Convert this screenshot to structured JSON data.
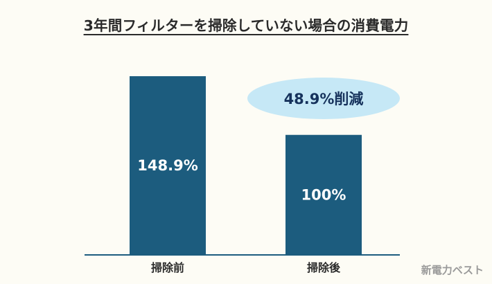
{
  "title": "3年間フィルターを掃除していない場合の消費電力",
  "brand": "新電力ベスト",
  "colors": {
    "background": "#fdfcf5",
    "bar": "#1c5c7e",
    "bar_label": "#ffffff",
    "axis": "#1c5c7e",
    "callout_fill": "#c6e8f6",
    "callout_text": "#16325c",
    "category_text": "#2a2a2a"
  },
  "chart_data": {
    "type": "bar",
    "categories": [
      "掃除前",
      "掃除後"
    ],
    "values": [
      148.9,
      100
    ],
    "value_labels": [
      "148.9%",
      "100%"
    ],
    "title": "3年間フィルターを掃除していない場合の消費電力",
    "xlabel": "",
    "ylabel": "",
    "ylim": [
      0,
      148.9
    ],
    "grid": false,
    "legend": "none",
    "annotations": [
      {
        "text": "48.9%削減",
        "near_category": "掃除後"
      }
    ]
  }
}
